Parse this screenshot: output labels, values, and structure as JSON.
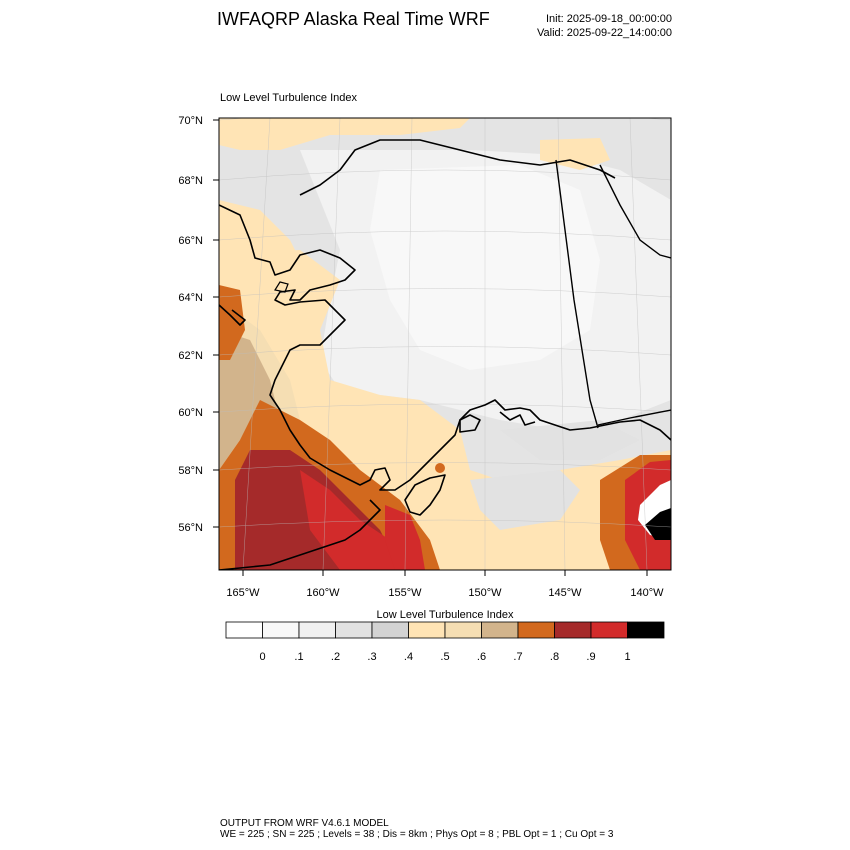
{
  "header": {
    "title": "IWFAQRP Alaska Real Time WRF",
    "init": "Init: 2025-09-18_00:00:00",
    "valid": "Valid: 2025-09-22_14:00:00"
  },
  "map": {
    "field_title": "Low Level Turbulence Index",
    "lat_labels": [
      "70°N",
      "68°N",
      "66°N",
      "64°N",
      "62°N",
      "60°N",
      "58°N",
      "56°N"
    ],
    "lon_labels": [
      "165°W",
      "160°W",
      "155°W",
      "150°W",
      "145°W",
      "140°W"
    ]
  },
  "colorbar": {
    "title": "Low Level Turbulence Index",
    "colors": [
      "#ffffff",
      "#f8f8f8",
      "#f0f0f0",
      "#e2e2e2",
      "#d3d3d3",
      "#ffe4b5",
      "#f5deb3",
      "#d2b48c",
      "#d2691e",
      "#a52a2a",
      "#d22b2b",
      "#000000"
    ],
    "tick_labels": [
      "0",
      ".1",
      ".2",
      ".3",
      ".4",
      ".5",
      ".6",
      ".7",
      ".8",
      ".9",
      "1"
    ]
  },
  "footer": {
    "line1": "OUTPUT FROM WRF V4.6.1 MODEL",
    "line2": "WE = 225 ; SN = 225 ; Levels = 38 ; Dis = 8km ; Phys Opt = 8 ; PBL Opt = 1 ; Cu Opt = 3"
  }
}
